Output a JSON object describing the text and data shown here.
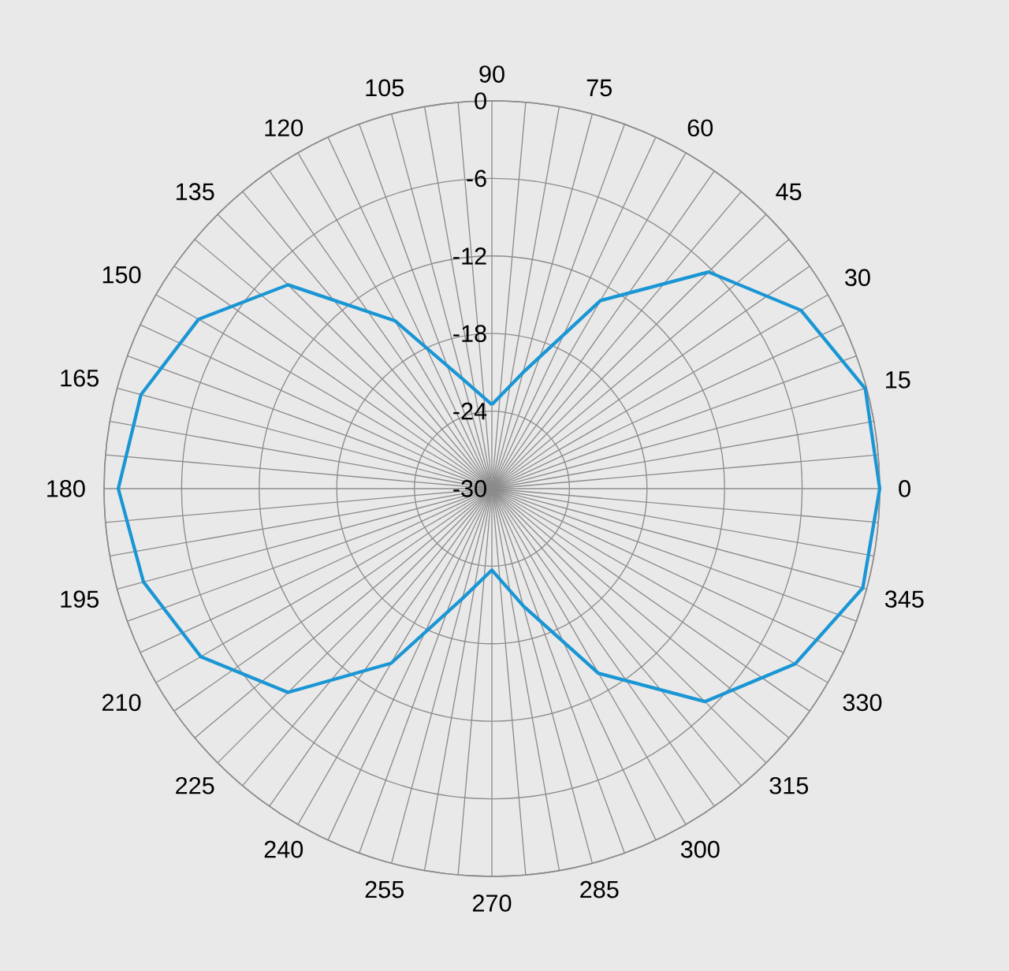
{
  "chart_data": {
    "type": "radar",
    "categories": [
      "90",
      "75",
      "60",
      "45",
      "30",
      "15",
      "0",
      "345",
      "330",
      "315",
      "300",
      "285",
      "270",
      "255",
      "240",
      "225",
      "210",
      "195",
      "180",
      "165",
      "150",
      "135",
      "120",
      "105"
    ],
    "series": [
      {
        "color": "#1a96d4",
        "values": [
          -23.5,
          -20.7,
          -13.2,
          -6.3,
          -2.4,
          -0.1,
          0,
          -0.3,
          -2.9,
          -6.7,
          -13.5,
          -20.6,
          -23.7,
          -21.2,
          -14.4,
          -7.7,
          -4.0,
          -2.1,
          -1.1,
          -1.9,
          -3.8,
          -7.7,
          -15.0,
          -21.2
        ]
      }
    ],
    "ylim": [
      -30,
      0
    ],
    "yticks": [
      -30,
      -24,
      -18,
      -12,
      -6,
      0
    ],
    "grid": true,
    "marker": "none",
    "line_style": "solid"
  }
}
